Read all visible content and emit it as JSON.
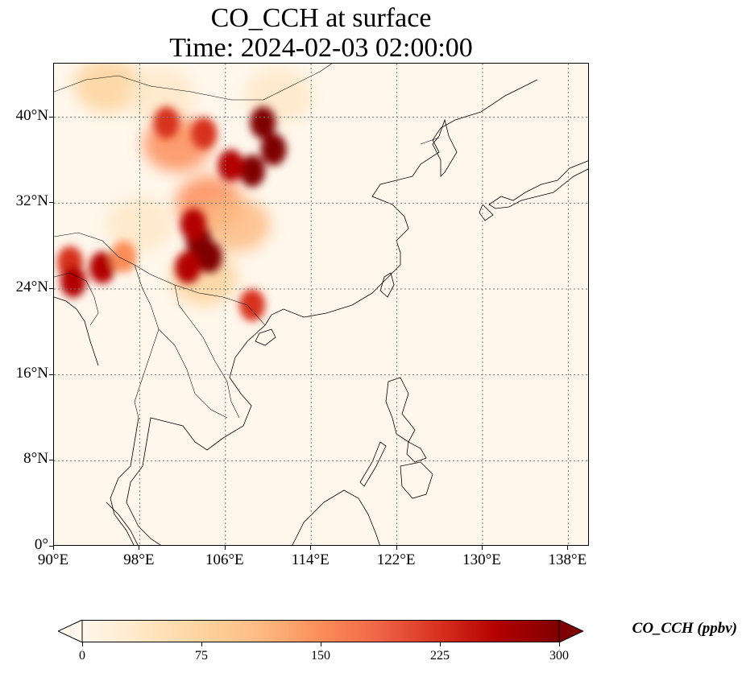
{
  "title": {
    "line1": "CO_CCH at surface",
    "line2": "Time: 2024-02-03 02:00:00"
  },
  "map": {
    "projection": "PlateCarree",
    "lon_range": [
      90,
      140
    ],
    "lat_range": [
      0,
      45
    ],
    "gridlines": true,
    "coastlines": true,
    "borders": true,
    "lon_ticks": [
      "90°E",
      "98°E",
      "106°E",
      "114°E",
      "122°E",
      "130°E",
      "138°E"
    ],
    "lat_ticks": [
      "0°",
      "8°N",
      "16°N",
      "24°N",
      "32°N",
      "40°N"
    ],
    "lon_tick_values": [
      90,
      98,
      106,
      114,
      122,
      130,
      138
    ],
    "lat_tick_values": [
      0,
      8,
      16,
      24,
      32,
      40
    ]
  },
  "colorbar": {
    "label": "CO_CCH (ppbv)",
    "ticks": [
      "0",
      "75",
      "150",
      "225",
      "300"
    ],
    "tick_values": [
      0,
      75,
      150,
      225,
      300
    ],
    "range": [
      0,
      300
    ],
    "extend": "both",
    "colormap": "OrRd",
    "colors": [
      "#fff7ec",
      "#fee8c8",
      "#fdd49e",
      "#fdbb84",
      "#fc8d59",
      "#ef6548",
      "#d7301f",
      "#b30000",
      "#7f0000"
    ]
  },
  "chart_data": {
    "type": "heatmap",
    "variable": "CO_CCH",
    "units": "ppbv",
    "level": "surface",
    "time": "2024-02-03 02:00:00",
    "x_range": [
      90,
      140
    ],
    "y_range": [
      0,
      45
    ],
    "vmin": 0,
    "vmax": 300,
    "hotspots": [
      {
        "lon": 103.5,
        "lat": 28.5,
        "value": 300
      },
      {
        "lon": 104.5,
        "lat": 27.0,
        "value": 300
      },
      {
        "lon": 103.0,
        "lat": 30.0,
        "value": 280
      },
      {
        "lon": 102.5,
        "lat": 26.0,
        "value": 250
      },
      {
        "lon": 109.5,
        "lat": 39.5,
        "value": 300
      },
      {
        "lon": 110.5,
        "lat": 37.0,
        "value": 300
      },
      {
        "lon": 108.5,
        "lat": 35.0,
        "value": 290
      },
      {
        "lon": 106.5,
        "lat": 35.5,
        "value": 260
      },
      {
        "lon": 104.0,
        "lat": 38.5,
        "value": 220
      },
      {
        "lon": 100.5,
        "lat": 39.5,
        "value": 240
      },
      {
        "lon": 108.5,
        "lat": 22.5,
        "value": 220
      },
      {
        "lon": 91.5,
        "lat": 26.5,
        "value": 230
      },
      {
        "lon": 94.5,
        "lat": 26.0,
        "value": 250
      },
      {
        "lon": 91.8,
        "lat": 24.7,
        "value": 260
      },
      {
        "lon": 96.5,
        "lat": 27.0,
        "value": 150
      }
    ],
    "plumes": [
      {
        "lon": 101.5,
        "lat": 37.5,
        "value": 160
      },
      {
        "lon": 104.5,
        "lat": 32.0,
        "value": 150
      },
      {
        "lon": 107.0,
        "lat": 30.0,
        "value": 120
      },
      {
        "lon": 104.0,
        "lat": 25.0,
        "value": 90
      },
      {
        "lon": 95.0,
        "lat": 43.0,
        "value": 60
      },
      {
        "lon": 100.0,
        "lat": 42.0,
        "value": 55
      },
      {
        "lon": 111.0,
        "lat": 42.0,
        "value": 40
      },
      {
        "lon": 98.0,
        "lat": 30.0,
        "value": 45
      }
    ]
  }
}
